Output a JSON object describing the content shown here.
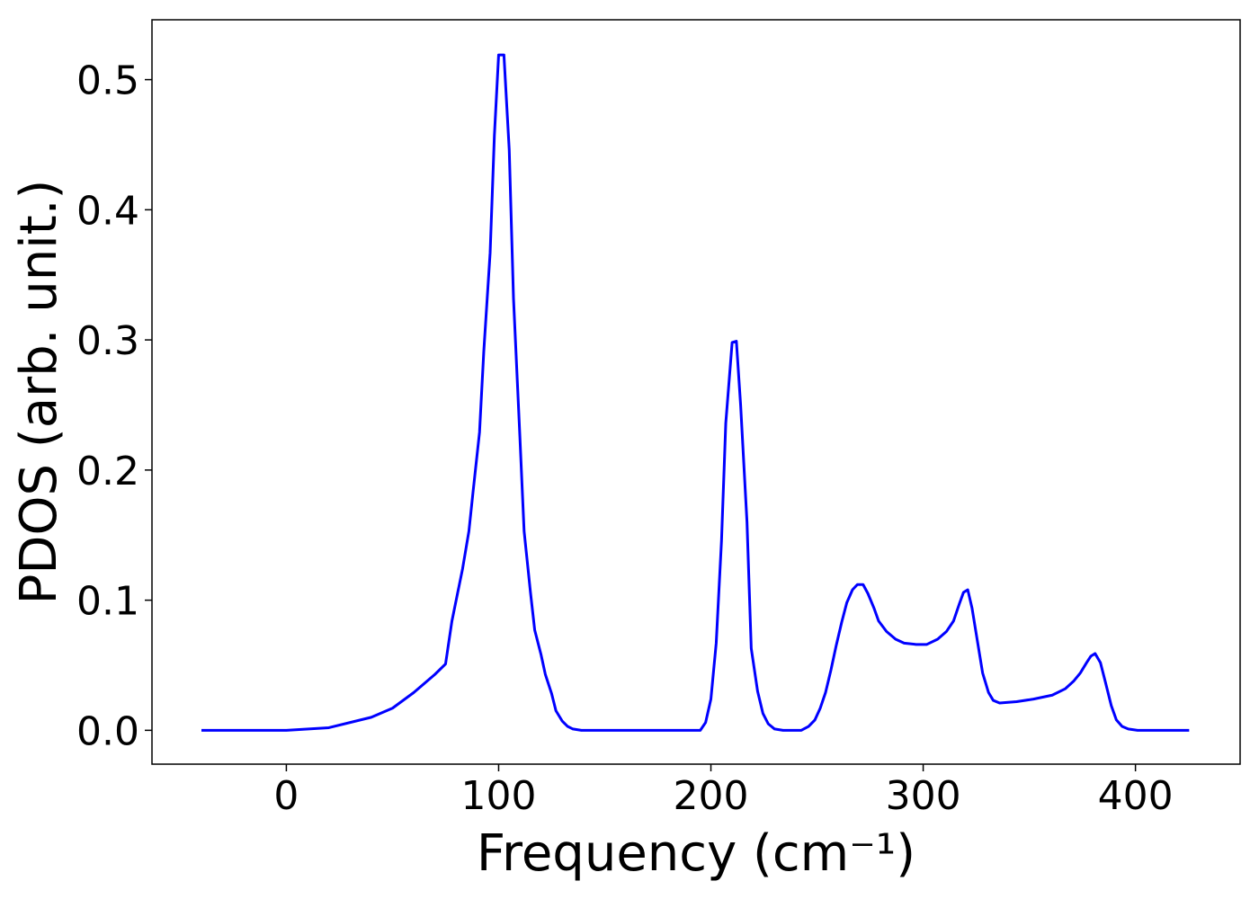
{
  "chart_data": {
    "type": "line",
    "x_label": "Frequency (cm⁻¹)",
    "y_label": "PDOS (arb. unit.)",
    "color": "#0000ff",
    "x": [
      -40,
      -20,
      0,
      20,
      40,
      50,
      60,
      70,
      75,
      78,
      80,
      83,
      86,
      88,
      91,
      93,
      96,
      98,
      100,
      102.5,
      105,
      107,
      110,
      112,
      115,
      117,
      120,
      122,
      125,
      127,
      130,
      132.5,
      135,
      139,
      160,
      180,
      195,
      197.5,
      200,
      202.5,
      205,
      207,
      210,
      212,
      214,
      217,
      219,
      222,
      224.5,
      227,
      230,
      234,
      242.6,
      246,
      249,
      251.5,
      254,
      256.5,
      259,
      261.6,
      264,
      266.7,
      269,
      271.7,
      274,
      276.8,
      279,
      282.7,
      287,
      291,
      296.6,
      301.7,
      306.8,
      311,
      314.3,
      317,
      319,
      321,
      323,
      325.7,
      328,
      330.8,
      333,
      336,
      344,
      352,
      360.8,
      367,
      371,
      374,
      377,
      379,
      381,
      383.5,
      386,
      388.6,
      391,
      393.7,
      396.6,
      401,
      425.3
    ],
    "values": [
      0,
      0,
      0,
      0.002,
      0.01,
      0.017,
      0.029,
      0.043,
      0.051,
      0.084,
      0.1,
      0.124,
      0.153,
      0.184,
      0.229,
      0.291,
      0.367,
      0.457,
      0.519,
      0.519,
      0.446,
      0.332,
      0.226,
      0.153,
      0.106,
      0.077,
      0.058,
      0.043,
      0.028,
      0.015,
      0.007,
      0.003,
      0.001,
      0,
      0,
      0,
      0,
      0.006,
      0.024,
      0.067,
      0.146,
      0.236,
      0.298,
      0.299,
      0.25,
      0.16,
      0.063,
      0.03,
      0.013,
      0.005,
      0.001,
      0,
      0,
      0.003,
      0.008,
      0.017,
      0.029,
      0.046,
      0.065,
      0.083,
      0.098,
      0.108,
      0.112,
      0.112,
      0.105,
      0.094,
      0.084,
      0.076,
      0.07,
      0.067,
      0.066,
      0.066,
      0.07,
      0.076,
      0.084,
      0.097,
      0.106,
      0.108,
      0.094,
      0.067,
      0.044,
      0.029,
      0.023,
      0.021,
      0.022,
      0.024,
      0.027,
      0.032,
      0.038,
      0.044,
      0.052,
      0.057,
      0.059,
      0.052,
      0.036,
      0.019,
      0.008,
      0.003,
      0.001,
      0,
      0
    ],
    "xlim": [
      -63.3,
      449.3
    ],
    "ylim": [
      -0.026,
      0.546
    ],
    "xticks": [
      0,
      100,
      200,
      300,
      400
    ],
    "yticks": [
      {
        "value": 0,
        "label": "0.0"
      },
      0.1,
      0.2,
      0.3,
      0.4,
      0.5
    ],
    "grid": false
  }
}
